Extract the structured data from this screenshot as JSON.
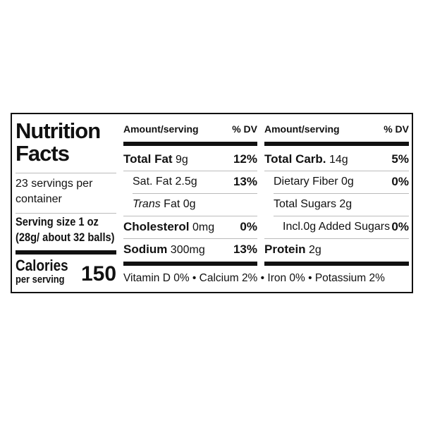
{
  "title": "Nutrition Facts",
  "servings": "23 servings per container",
  "serving_size": {
    "label": "Serving size 1 oz",
    "weight": "(28g/ about 32 balls)"
  },
  "calories": {
    "label": "Calories",
    "sublabel": "per serving",
    "value": "150"
  },
  "tables": [
    {
      "header": {
        "amount": "Amount/serving",
        "dv": "% DV"
      },
      "rows": [
        {
          "name": "Total Fat",
          "amount": "9g",
          "dv": "12%",
          "bold": true,
          "indent": 0
        },
        {
          "name": "Sat. Fat",
          "amount": "2.5g",
          "dv": "13%",
          "bold": false,
          "indent": 1
        },
        {
          "name_italic": "Trans",
          "name": "Fat",
          "amount": "0g",
          "bold": false,
          "indent": 1
        },
        {
          "name": "Cholesterol",
          "amount": "0mg",
          "dv": "0%",
          "bold": true,
          "indent": 0
        },
        {
          "name": "Sodium",
          "amount": "300mg",
          "dv": "13%",
          "bold": true,
          "indent": 0
        }
      ]
    },
    {
      "header": {
        "amount": "Amount/serving",
        "dv": "% DV"
      },
      "rows": [
        {
          "name": "Total Carb.",
          "amount": "14g",
          "dv": "5%",
          "bold": true,
          "indent": 0
        },
        {
          "name": "Dietary Fiber",
          "amount": "0g",
          "dv": "0%",
          "bold": false,
          "indent": 1
        },
        {
          "name": "Total Sugars",
          "amount": "2g",
          "bold": false,
          "indent": 1
        },
        {
          "name": "Incl.0g Added Sugars",
          "dv": "0%",
          "bold": false,
          "indent": 2
        },
        {
          "name": "Protein",
          "amount": "2g",
          "bold": true,
          "indent": 0
        }
      ]
    }
  ],
  "footer": "Vitamin D 0% • Calcium 2% • Iron 0% • Potassium 2%"
}
